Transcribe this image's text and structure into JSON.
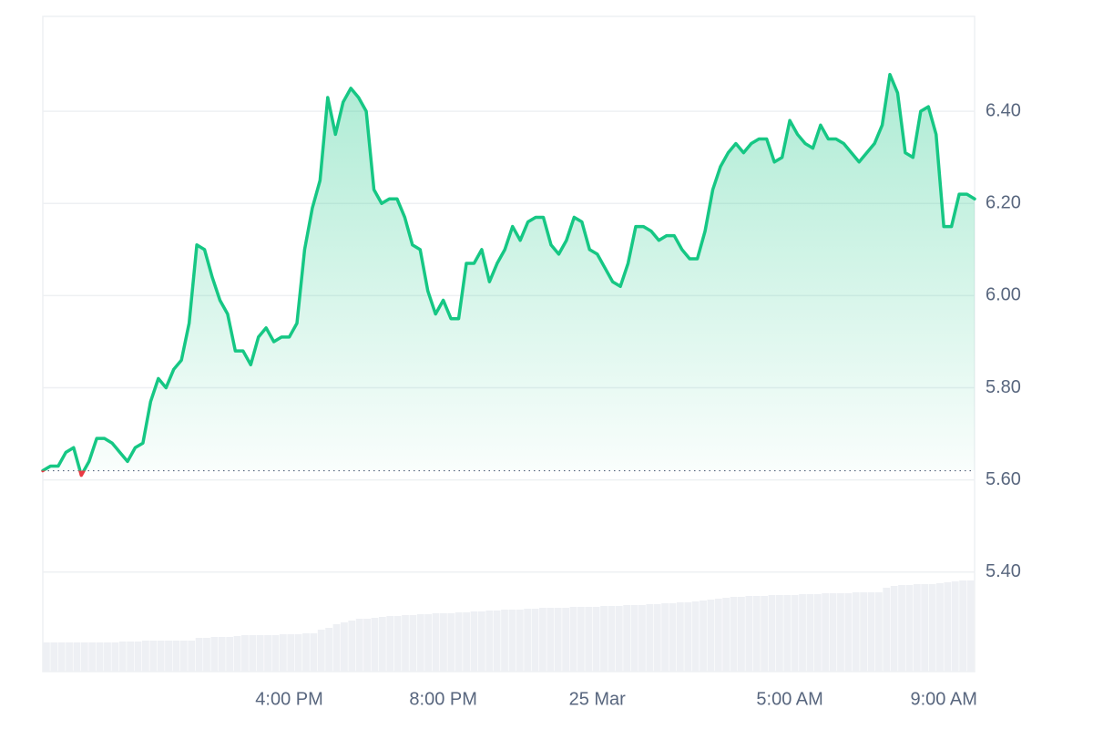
{
  "chart_data": {
    "type": "line",
    "x": [
      9.6,
      9.8,
      10,
      10.2,
      10.4,
      10.6,
      10.8,
      11,
      11.2,
      11.4,
      11.6,
      11.8,
      12,
      12.2,
      12.4,
      12.6,
      12.8,
      13,
      13.2,
      13.4,
      13.6,
      13.8,
      14,
      14.2,
      14.4,
      14.6,
      14.8,
      15,
      15.2,
      15.4,
      15.6,
      15.8,
      16,
      16.2,
      16.4,
      16.6,
      16.8,
      17,
      17.2,
      17.4,
      17.6,
      17.8,
      18,
      18.2,
      18.4,
      18.6,
      18.8,
      19,
      19.2,
      19.4,
      19.6,
      19.8,
      20,
      20.2,
      20.4,
      20.6,
      20.8,
      21,
      21.2,
      21.4,
      21.6,
      21.8,
      22,
      22.2,
      22.4,
      22.6,
      22.8,
      23,
      23.2,
      23.4,
      23.6,
      23.8,
      24,
      24.2,
      24.4,
      24.6,
      24.8,
      25,
      25.2,
      25.4,
      25.6,
      25.8,
      26,
      26.2,
      26.4,
      26.6,
      26.8,
      27,
      27.2,
      27.4,
      27.6,
      27.8,
      28,
      28.2,
      28.4,
      28.6,
      28.8,
      29,
      29.2,
      29.4,
      29.6,
      29.8,
      30,
      30.2,
      30.4,
      30.6,
      30.8,
      31,
      31.2,
      31.4,
      31.6,
      31.8,
      32,
      32.2,
      32.4,
      32.6,
      32.8,
      33,
      33.2,
      33.4,
      33.6,
      33.8
    ],
    "values": [
      5.62,
      5.63,
      5.63,
      5.66,
      5.67,
      5.61,
      5.64,
      5.69,
      5.69,
      5.68,
      5.66,
      5.64,
      5.67,
      5.68,
      5.77,
      5.82,
      5.8,
      5.84,
      5.86,
      5.94,
      6.11,
      6.1,
      6.04,
      5.99,
      5.96,
      5.88,
      5.88,
      5.85,
      5.91,
      5.93,
      5.9,
      5.91,
      5.91,
      5.94,
      6.1,
      6.19,
      6.25,
      6.43,
      6.35,
      6.42,
      6.45,
      6.43,
      6.4,
      6.23,
      6.2,
      6.21,
      6.21,
      6.17,
      6.11,
      6.1,
      6.01,
      5.96,
      5.99,
      5.95,
      5.95,
      6.07,
      6.07,
      6.1,
      6.03,
      6.07,
      6.1,
      6.15,
      6.12,
      6.16,
      6.17,
      6.17,
      6.11,
      6.09,
      6.12,
      6.17,
      6.16,
      6.1,
      6.09,
      6.06,
      6.03,
      6.02,
      6.07,
      6.15,
      6.15,
      6.14,
      6.12,
      6.13,
      6.13,
      6.1,
      6.08,
      6.08,
      6.14,
      6.23,
      6.28,
      6.31,
      6.33,
      6.31,
      6.33,
      6.34,
      6.34,
      6.29,
      6.3,
      6.38,
      6.35,
      6.33,
      6.32,
      6.37,
      6.34,
      6.34,
      6.33,
      6.31,
      6.29,
      6.31,
      6.33,
      6.37,
      6.48,
      6.44,
      6.31,
      6.3,
      6.4,
      6.41,
      6.35,
      6.15,
      6.15,
      6.22,
      6.22,
      6.21
    ],
    "volume": [
      32,
      32,
      32,
      32,
      32,
      32,
      32,
      32,
      32,
      32,
      33,
      33,
      33,
      34,
      34,
      34,
      34,
      34,
      34,
      34,
      37,
      37,
      38,
      38,
      38,
      39,
      40,
      40,
      40,
      40,
      40,
      41,
      41,
      41,
      42,
      42,
      46,
      48,
      52,
      54,
      56,
      58,
      58,
      59,
      60,
      61,
      61,
      62,
      62,
      63,
      63,
      64,
      64,
      64,
      65,
      65,
      66,
      66,
      67,
      67,
      68,
      68,
      68,
      69,
      69,
      70,
      70,
      70,
      70,
      71,
      71,
      71,
      71,
      72,
      72,
      72,
      73,
      73,
      73,
      74,
      74,
      75,
      75,
      76,
      76,
      77,
      78,
      79,
      80,
      81,
      82,
      82,
      83,
      83,
      83,
      84,
      84,
      84,
      84,
      85,
      85,
      85,
      86,
      86,
      86,
      86,
      87,
      87,
      87,
      87,
      92,
      94,
      95,
      95,
      96,
      96,
      96,
      97,
      98,
      99,
      100,
      100
    ],
    "color": "#16c784",
    "down_color": "#ea3943",
    "volume_color": "#eef0f4",
    "xlim": [
      9.6,
      33.8
    ],
    "xticks": [
      {
        "value": 16,
        "label": "4:00 PM"
      },
      {
        "value": 20,
        "label": "8:00 PM"
      },
      {
        "value": 24,
        "label": "25 Mar"
      },
      {
        "value": 29,
        "label": "5:00 AM"
      },
      {
        "value": 33,
        "label": "9:00 AM"
      }
    ],
    "ylim": [
      5.184,
      6.606
    ],
    "yticks": [
      {
        "value": 5.4,
        "label": "5.40"
      },
      {
        "value": 5.6,
        "label": "5.60"
      },
      {
        "value": 5.8,
        "label": "5.80"
      },
      {
        "value": 6.0,
        "label": "6.00"
      },
      {
        "value": 6.2,
        "label": "6.20"
      },
      {
        "value": 6.4,
        "label": "6.40"
      }
    ],
    "grid": true
  }
}
